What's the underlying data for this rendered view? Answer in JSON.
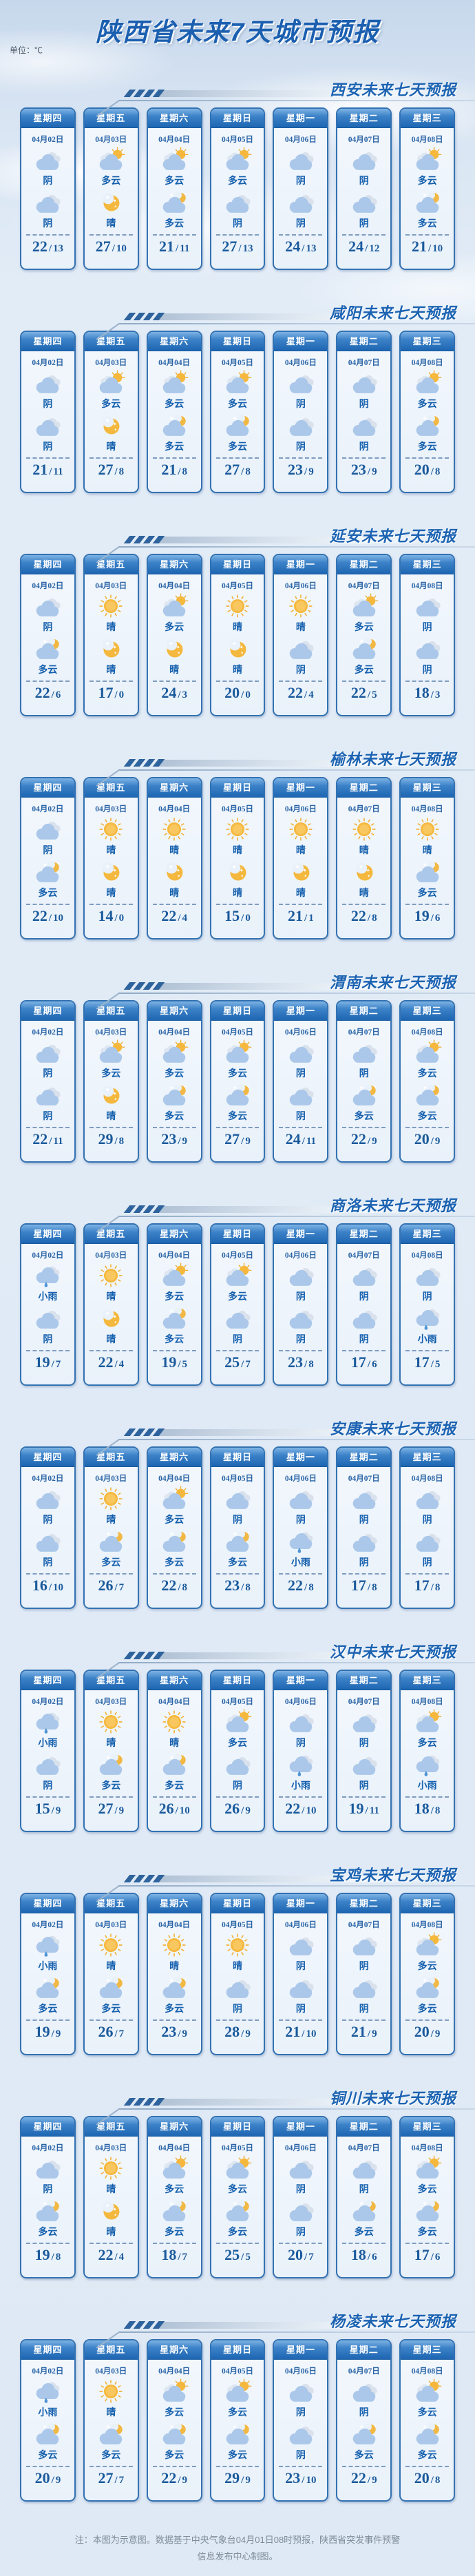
{
  "page": {
    "title": "陕西省未来7天城市预报",
    "unit_label": "单位：℃",
    "temp_separator": "/",
    "footer_note": "注：本图为示意图。数据基于中央气象台04月01日08时预报，陕西省突发事件预警信息发布中心制图。"
  },
  "colors": {
    "accent_blue": "#1c63b2",
    "card_border": "#3372b2",
    "title_color": "#1b5fb0",
    "temp_color": "#1a5a9c",
    "sun_yellow": "#f6b93f",
    "cloud_blue": "#abc8ea"
  },
  "weekdays": [
    "星期四",
    "星期五",
    "星期六",
    "星期日",
    "星期一",
    "星期二",
    "星期三"
  ],
  "dates": [
    "04月02日",
    "04月03日",
    "04月04日",
    "04月05日",
    "04月06日",
    "04月07日",
    "04月08日"
  ],
  "sections": [
    {
      "city": "西安",
      "title": "西安未来七天预报",
      "days": [
        {
          "day": "阴",
          "day_icon": "overcast-icon",
          "night": "阴",
          "night_icon": "overcast-icon",
          "high": "22",
          "low": "13"
        },
        {
          "day": "多云",
          "day_icon": "cloudy-day-icon",
          "night": "晴",
          "night_icon": "clear-night-icon",
          "high": "27",
          "low": "10"
        },
        {
          "day": "多云",
          "day_icon": "cloudy-day-icon",
          "night": "多云",
          "night_icon": "cloudy-night-icon",
          "high": "21",
          "low": "11"
        },
        {
          "day": "多云",
          "day_icon": "cloudy-day-icon",
          "night": "阴",
          "night_icon": "overcast-icon",
          "high": "27",
          "low": "13"
        },
        {
          "day": "阴",
          "day_icon": "overcast-icon",
          "night": "阴",
          "night_icon": "overcast-icon",
          "high": "24",
          "low": "13"
        },
        {
          "day": "阴",
          "day_icon": "overcast-icon",
          "night": "阴",
          "night_icon": "overcast-icon",
          "high": "24",
          "low": "12"
        },
        {
          "day": "多云",
          "day_icon": "cloudy-day-icon",
          "night": "多云",
          "night_icon": "cloudy-night-icon",
          "high": "21",
          "low": "10"
        }
      ]
    },
    {
      "city": "咸阳",
      "title": "咸阳未来七天预报",
      "days": [
        {
          "day": "阴",
          "day_icon": "overcast-icon",
          "night": "阴",
          "night_icon": "overcast-icon",
          "high": "21",
          "low": "11"
        },
        {
          "day": "多云",
          "day_icon": "cloudy-day-icon",
          "night": "晴",
          "night_icon": "clear-night-icon",
          "high": "27",
          "low": "8"
        },
        {
          "day": "多云",
          "day_icon": "cloudy-day-icon",
          "night": "多云",
          "night_icon": "cloudy-night-icon",
          "high": "21",
          "low": "8"
        },
        {
          "day": "多云",
          "day_icon": "cloudy-day-icon",
          "night": "多云",
          "night_icon": "cloudy-night-icon",
          "high": "27",
          "low": "8"
        },
        {
          "day": "阴",
          "day_icon": "overcast-icon",
          "night": "阴",
          "night_icon": "overcast-icon",
          "high": "23",
          "low": "9"
        },
        {
          "day": "阴",
          "day_icon": "overcast-icon",
          "night": "阴",
          "night_icon": "overcast-icon",
          "high": "23",
          "low": "9"
        },
        {
          "day": "多云",
          "day_icon": "cloudy-day-icon",
          "night": "多云",
          "night_icon": "cloudy-night-icon",
          "high": "20",
          "low": "8"
        }
      ]
    },
    {
      "city": "延安",
      "title": "延安未来七天预报",
      "days": [
        {
          "day": "阴",
          "day_icon": "overcast-icon",
          "night": "多云",
          "night_icon": "cloudy-night-icon",
          "high": "22",
          "low": "6"
        },
        {
          "day": "晴",
          "day_icon": "sunny-icon",
          "night": "晴",
          "night_icon": "clear-night-icon",
          "high": "17",
          "low": "0"
        },
        {
          "day": "多云",
          "day_icon": "cloudy-day-icon",
          "night": "晴",
          "night_icon": "clear-night-icon",
          "high": "24",
          "low": "3"
        },
        {
          "day": "晴",
          "day_icon": "sunny-icon",
          "night": "晴",
          "night_icon": "clear-night-icon",
          "high": "20",
          "low": "0"
        },
        {
          "day": "晴",
          "day_icon": "sunny-icon",
          "night": "阴",
          "night_icon": "overcast-icon",
          "high": "22",
          "low": "4"
        },
        {
          "day": "多云",
          "day_icon": "cloudy-day-icon",
          "night": "多云",
          "night_icon": "cloudy-night-icon",
          "high": "22",
          "low": "5"
        },
        {
          "day": "阴",
          "day_icon": "overcast-icon",
          "night": "阴",
          "night_icon": "overcast-icon",
          "high": "18",
          "low": "3"
        }
      ]
    },
    {
      "city": "榆林",
      "title": "榆林未来七天预报",
      "days": [
        {
          "day": "阴",
          "day_icon": "overcast-icon",
          "night": "多云",
          "night_icon": "cloudy-night-icon",
          "high": "22",
          "low": "10"
        },
        {
          "day": "晴",
          "day_icon": "sunny-icon",
          "night": "晴",
          "night_icon": "clear-night-icon",
          "high": "14",
          "low": "0"
        },
        {
          "day": "晴",
          "day_icon": "sunny-icon",
          "night": "晴",
          "night_icon": "clear-night-icon",
          "high": "22",
          "low": "4"
        },
        {
          "day": "晴",
          "day_icon": "sunny-icon",
          "night": "晴",
          "night_icon": "clear-night-icon",
          "high": "15",
          "low": "0"
        },
        {
          "day": "晴",
          "day_icon": "sunny-icon",
          "night": "晴",
          "night_icon": "clear-night-icon",
          "high": "21",
          "low": "1"
        },
        {
          "day": "晴",
          "day_icon": "sunny-icon",
          "night": "晴",
          "night_icon": "clear-night-icon",
          "high": "22",
          "low": "8"
        },
        {
          "day": "晴",
          "day_icon": "sunny-icon",
          "night": "多云",
          "night_icon": "cloudy-night-icon",
          "high": "19",
          "low": "6"
        }
      ]
    },
    {
      "city": "渭南",
      "title": "渭南未来七天预报",
      "days": [
        {
          "day": "阴",
          "day_icon": "overcast-icon",
          "night": "阴",
          "night_icon": "overcast-icon",
          "high": "22",
          "low": "11"
        },
        {
          "day": "多云",
          "day_icon": "cloudy-day-icon",
          "night": "晴",
          "night_icon": "clear-night-icon",
          "high": "29",
          "low": "8"
        },
        {
          "day": "多云",
          "day_icon": "cloudy-day-icon",
          "night": "多云",
          "night_icon": "cloudy-night-icon",
          "high": "23",
          "low": "9"
        },
        {
          "day": "多云",
          "day_icon": "cloudy-day-icon",
          "night": "多云",
          "night_icon": "cloudy-night-icon",
          "high": "27",
          "low": "9"
        },
        {
          "day": "阴",
          "day_icon": "overcast-icon",
          "night": "阴",
          "night_icon": "overcast-icon",
          "high": "24",
          "low": "11"
        },
        {
          "day": "阴",
          "day_icon": "overcast-icon",
          "night": "多云",
          "night_icon": "cloudy-night-icon",
          "high": "22",
          "low": "9"
        },
        {
          "day": "多云",
          "day_icon": "cloudy-day-icon",
          "night": "多云",
          "night_icon": "cloudy-night-icon",
          "high": "20",
          "low": "9"
        }
      ]
    },
    {
      "city": "商洛",
      "title": "商洛未来七天预报",
      "days": [
        {
          "day": "小雨",
          "day_icon": "light-rain-icon",
          "night": "阴",
          "night_icon": "overcast-icon",
          "high": "19",
          "low": "7"
        },
        {
          "day": "晴",
          "day_icon": "sunny-icon",
          "night": "晴",
          "night_icon": "clear-night-icon",
          "high": "22",
          "low": "4"
        },
        {
          "day": "多云",
          "day_icon": "cloudy-day-icon",
          "night": "多云",
          "night_icon": "cloudy-night-icon",
          "high": "19",
          "low": "5"
        },
        {
          "day": "多云",
          "day_icon": "cloudy-day-icon",
          "night": "阴",
          "night_icon": "overcast-icon",
          "high": "25",
          "low": "7"
        },
        {
          "day": "阴",
          "day_icon": "overcast-icon",
          "night": "阴",
          "night_icon": "overcast-icon",
          "high": "23",
          "low": "8"
        },
        {
          "day": "阴",
          "day_icon": "overcast-icon",
          "night": "阴",
          "night_icon": "overcast-icon",
          "high": "17",
          "low": "6"
        },
        {
          "day": "阴",
          "day_icon": "overcast-icon",
          "night": "小雨",
          "night_icon": "light-rain-icon",
          "high": "17",
          "low": "5"
        }
      ]
    },
    {
      "city": "安康",
      "title": "安康未来七天预报",
      "days": [
        {
          "day": "阴",
          "day_icon": "overcast-icon",
          "night": "阴",
          "night_icon": "overcast-icon",
          "high": "16",
          "low": "10"
        },
        {
          "day": "晴",
          "day_icon": "sunny-icon",
          "night": "多云",
          "night_icon": "cloudy-night-icon",
          "high": "26",
          "low": "7"
        },
        {
          "day": "多云",
          "day_icon": "cloudy-day-icon",
          "night": "多云",
          "night_icon": "cloudy-night-icon",
          "high": "22",
          "low": "8"
        },
        {
          "day": "阴",
          "day_icon": "overcast-icon",
          "night": "多云",
          "night_icon": "cloudy-night-icon",
          "high": "23",
          "low": "8"
        },
        {
          "day": "阴",
          "day_icon": "overcast-icon",
          "night": "小雨",
          "night_icon": "light-rain-icon",
          "high": "22",
          "low": "8"
        },
        {
          "day": "阴",
          "day_icon": "overcast-icon",
          "night": "阴",
          "night_icon": "overcast-icon",
          "high": "17",
          "low": "8"
        },
        {
          "day": "阴",
          "day_icon": "overcast-icon",
          "night": "阴",
          "night_icon": "overcast-icon",
          "high": "17",
          "low": "8"
        }
      ]
    },
    {
      "city": "汉中",
      "title": "汉中未来七天预报",
      "days": [
        {
          "day": "小雨",
          "day_icon": "light-rain-icon",
          "night": "阴",
          "night_icon": "overcast-icon",
          "high": "15",
          "low": "9"
        },
        {
          "day": "晴",
          "day_icon": "sunny-icon",
          "night": "多云",
          "night_icon": "cloudy-night-icon",
          "high": "27",
          "low": "9"
        },
        {
          "day": "晴",
          "day_icon": "sunny-icon",
          "night": "多云",
          "night_icon": "cloudy-night-icon",
          "high": "26",
          "low": "10"
        },
        {
          "day": "多云",
          "day_icon": "cloudy-day-icon",
          "night": "阴",
          "night_icon": "overcast-icon",
          "high": "26",
          "low": "9"
        },
        {
          "day": "阴",
          "day_icon": "overcast-icon",
          "night": "小雨",
          "night_icon": "light-rain-icon",
          "high": "22",
          "low": "10"
        },
        {
          "day": "阴",
          "day_icon": "overcast-icon",
          "night": "阴",
          "night_icon": "overcast-icon",
          "high": "19",
          "low": "11"
        },
        {
          "day": "多云",
          "day_icon": "cloudy-day-icon",
          "night": "小雨",
          "night_icon": "light-rain-icon",
          "high": "18",
          "low": "8"
        }
      ]
    },
    {
      "city": "宝鸡",
      "title": "宝鸡未来七天预报",
      "days": [
        {
          "day": "小雨",
          "day_icon": "light-rain-icon",
          "night": "多云",
          "night_icon": "cloudy-night-icon",
          "high": "19",
          "low": "9"
        },
        {
          "day": "晴",
          "day_icon": "sunny-icon",
          "night": "多云",
          "night_icon": "cloudy-night-icon",
          "high": "26",
          "low": "7"
        },
        {
          "day": "晴",
          "day_icon": "sunny-icon",
          "night": "多云",
          "night_icon": "cloudy-night-icon",
          "high": "23",
          "low": "9"
        },
        {
          "day": "晴",
          "day_icon": "sunny-icon",
          "night": "阴",
          "night_icon": "overcast-icon",
          "high": "28",
          "low": "9"
        },
        {
          "day": "阴",
          "day_icon": "overcast-icon",
          "night": "阴",
          "night_icon": "overcast-icon",
          "high": "21",
          "low": "10"
        },
        {
          "day": "阴",
          "day_icon": "overcast-icon",
          "night": "阴",
          "night_icon": "overcast-icon",
          "high": "21",
          "low": "9"
        },
        {
          "day": "多云",
          "day_icon": "cloudy-day-icon",
          "night": "多云",
          "night_icon": "cloudy-night-icon",
          "high": "20",
          "low": "9"
        }
      ]
    },
    {
      "city": "铜川",
      "title": "铜川未来七天预报",
      "days": [
        {
          "day": "阴",
          "day_icon": "overcast-icon",
          "night": "多云",
          "night_icon": "cloudy-night-icon",
          "high": "19",
          "low": "8"
        },
        {
          "day": "晴",
          "day_icon": "sunny-icon",
          "night": "晴",
          "night_icon": "clear-night-icon",
          "high": "22",
          "low": "4"
        },
        {
          "day": "多云",
          "day_icon": "cloudy-day-icon",
          "night": "多云",
          "night_icon": "cloudy-night-icon",
          "high": "18",
          "low": "7"
        },
        {
          "day": "多云",
          "day_icon": "cloudy-day-icon",
          "night": "多云",
          "night_icon": "cloudy-night-icon",
          "high": "25",
          "low": "5"
        },
        {
          "day": "阴",
          "day_icon": "overcast-icon",
          "night": "阴",
          "night_icon": "overcast-icon",
          "high": "20",
          "low": "7"
        },
        {
          "day": "阴",
          "day_icon": "overcast-icon",
          "night": "多云",
          "night_icon": "cloudy-night-icon",
          "high": "18",
          "low": "6"
        },
        {
          "day": "多云",
          "day_icon": "cloudy-day-icon",
          "night": "多云",
          "night_icon": "cloudy-night-icon",
          "high": "17",
          "low": "6"
        }
      ]
    },
    {
      "city": "杨凌",
      "title": "杨凌未来七天预报",
      "days": [
        {
          "day": "小雨",
          "day_icon": "light-rain-icon",
          "night": "多云",
          "night_icon": "cloudy-night-icon",
          "high": "20",
          "low": "9"
        },
        {
          "day": "晴",
          "day_icon": "sunny-icon",
          "night": "多云",
          "night_icon": "cloudy-night-icon",
          "high": "27",
          "low": "7"
        },
        {
          "day": "多云",
          "day_icon": "cloudy-day-icon",
          "night": "多云",
          "night_icon": "cloudy-night-icon",
          "high": "22",
          "low": "9"
        },
        {
          "day": "多云",
          "day_icon": "cloudy-day-icon",
          "night": "多云",
          "night_icon": "cloudy-night-icon",
          "high": "29",
          "low": "9"
        },
        {
          "day": "阴",
          "day_icon": "overcast-icon",
          "night": "阴",
          "night_icon": "overcast-icon",
          "high": "23",
          "low": "10"
        },
        {
          "day": "阴",
          "day_icon": "overcast-icon",
          "night": "多云",
          "night_icon": "cloudy-night-icon",
          "high": "22",
          "low": "9"
        },
        {
          "day": "多云",
          "day_icon": "cloudy-day-icon",
          "night": "多云",
          "night_icon": "cloudy-night-icon",
          "high": "20",
          "low": "8"
        }
      ]
    }
  ]
}
